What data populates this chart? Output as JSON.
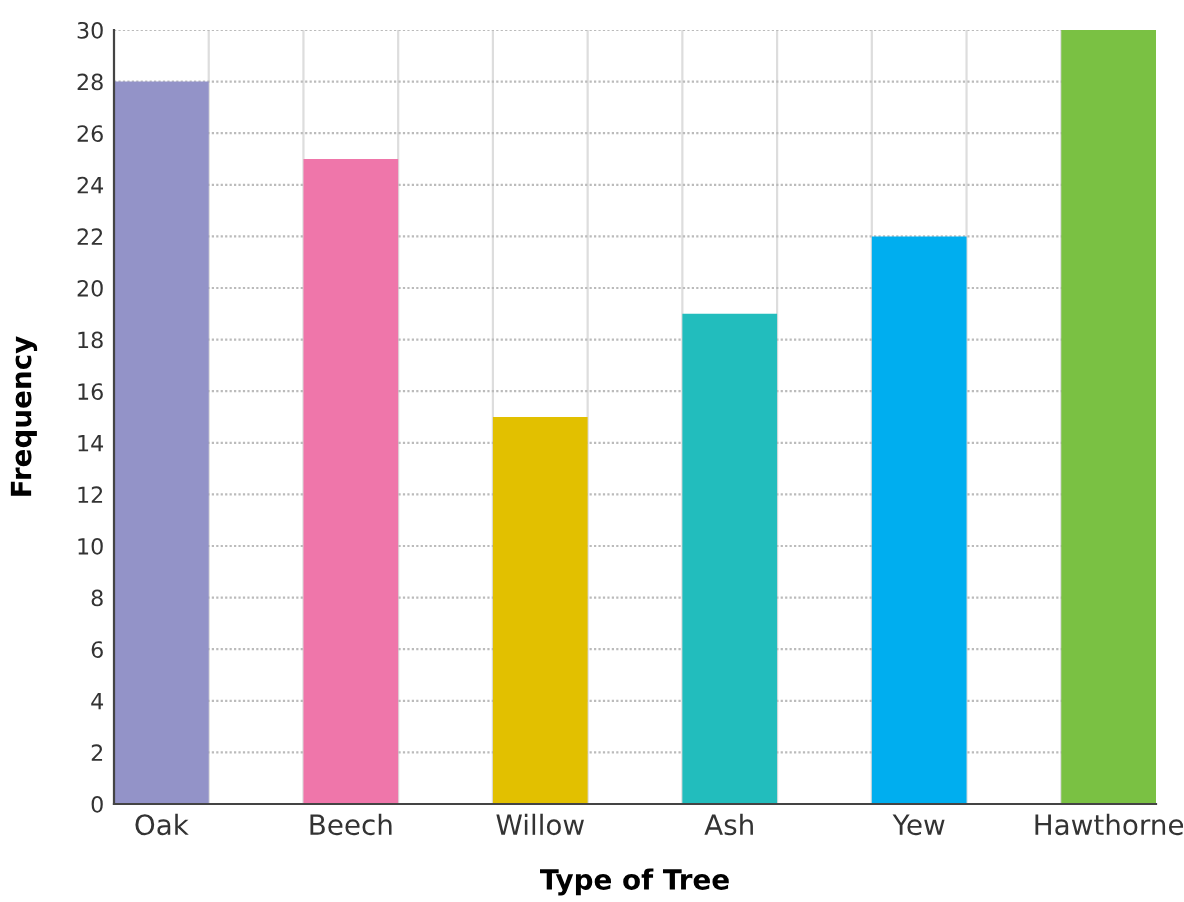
{
  "chart_data": {
    "type": "bar",
    "xlabel": "Type of Tree",
    "ylabel": "Frequency",
    "categories": [
      "Oak",
      "Beech",
      "Willow",
      "Ash",
      "Yew",
      "Hawthorne"
    ],
    "values": [
      28,
      25,
      15,
      19,
      22,
      30
    ],
    "colors": [
      "#9393c8",
      "#ef76aa",
      "#e2c000",
      "#22bdbd",
      "#00aeef",
      "#7ac143"
    ],
    "ylim": [
      0,
      30
    ],
    "yticks": [
      0,
      2,
      4,
      6,
      8,
      10,
      12,
      14,
      16,
      18,
      20,
      22,
      24,
      26,
      28,
      30
    ],
    "grid": true
  }
}
